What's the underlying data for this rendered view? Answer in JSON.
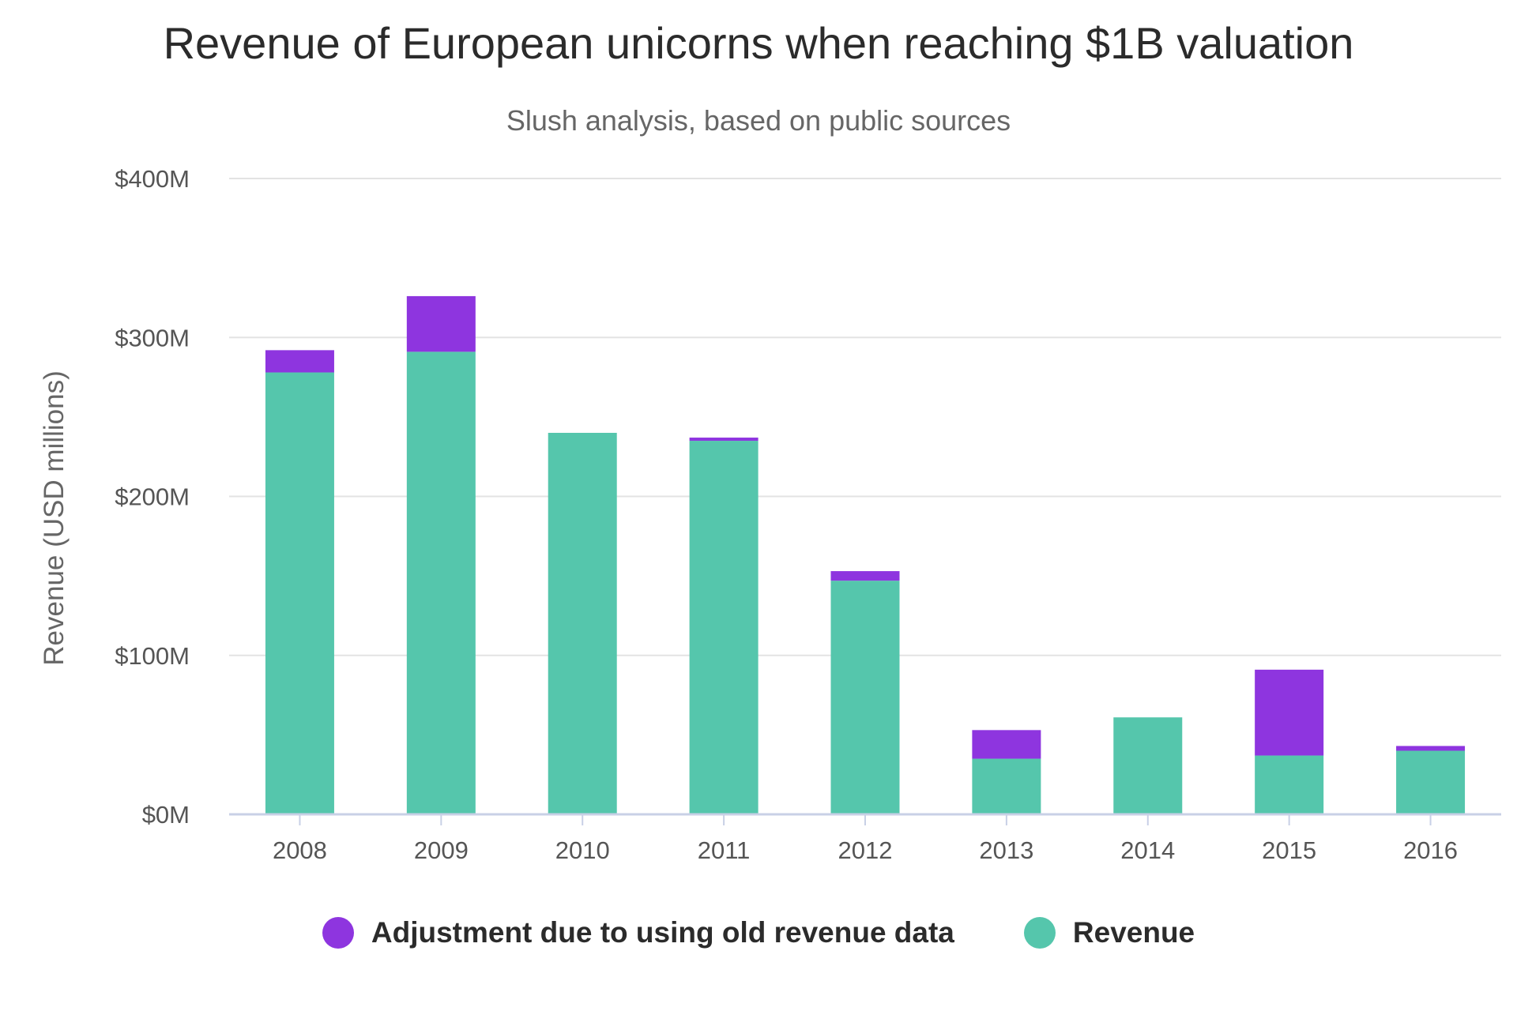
{
  "title": "Revenue of European unicorns when reaching $1B valuation",
  "subtitle": "Slush analysis, based on public sources",
  "colors": {
    "adjustment": "#8e35df",
    "revenue": "#55c6ac",
    "grid": "#e3e3e3",
    "axis": "#c8d0e6"
  },
  "legend": [
    {
      "label": "Adjustment due to using old revenue data",
      "color": "#8e35df"
    },
    {
      "label": "Revenue",
      "color": "#55c6ac"
    }
  ],
  "chart_data": {
    "type": "bar",
    "stacked": true,
    "title": "Revenue of European unicorns when reaching $1B valuation",
    "subtitle": "Slush analysis, based on public sources",
    "xlabel": "",
    "ylabel": "Revenue (USD millions)",
    "ylim": [
      0,
      400
    ],
    "yticks": [
      0,
      100,
      200,
      300,
      400
    ],
    "ytick_labels": [
      "$0M",
      "$100M",
      "$200M",
      "$300M",
      "$400M"
    ],
    "categories": [
      "2008",
      "2009",
      "2010",
      "2011",
      "2012",
      "2013",
      "2014",
      "2015",
      "2016"
    ],
    "series": [
      {
        "name": "Revenue",
        "color": "#55c6ac",
        "values": [
          278,
          291,
          240,
          235,
          147,
          35,
          61,
          37,
          40
        ]
      },
      {
        "name": "Adjustment due to using old revenue data",
        "color": "#8e35df",
        "values": [
          14,
          35,
          0,
          2,
          6,
          18,
          0,
          54,
          3
        ]
      }
    ],
    "grid": true,
    "legend_position": "bottom"
  }
}
